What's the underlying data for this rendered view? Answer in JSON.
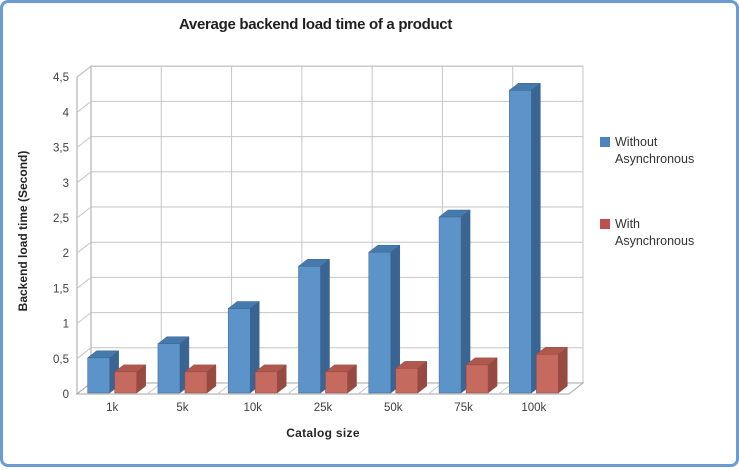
{
  "frame": {
    "border_color": "#6b9bd2",
    "background": "#ffffff"
  },
  "chart_data": {
    "type": "bar",
    "style": "3d-clustered-column",
    "title": "Average backend load time of a product",
    "xlabel": "Catalog size",
    "ylabel": "Backend load time (Second)",
    "categories": [
      "1k",
      "5k",
      "10k",
      "25k",
      "50k",
      "75k",
      "100k"
    ],
    "series": [
      {
        "name": "Without Asynchronous",
        "values": [
          0.5,
          0.7,
          1.2,
          1.8,
          2.0,
          2.5,
          4.3
        ],
        "color": "#4F81BD",
        "face_color": "#5C93C8",
        "side_color": "#3A6492",
        "top_color": "#4679AC"
      },
      {
        "name": "With Asynchronous",
        "values": [
          0.3,
          0.3,
          0.3,
          0.3,
          0.35,
          0.4,
          0.55
        ],
        "color": "#C0504D",
        "face_color": "#C6695F",
        "side_color": "#964A42",
        "top_color": "#B0584E"
      }
    ],
    "ylim": [
      0,
      4.5
    ],
    "y_tick_step": 0.5,
    "y_tick_labels": [
      "0",
      "0,5",
      "1",
      "1,5",
      "2",
      "2,5",
      "3",
      "3,5",
      "4",
      "4,5"
    ],
    "grid": true,
    "legend_position": "right",
    "colors": {
      "gridline": "#C6C6C6",
      "wall_edge": "#A6A6A6",
      "wall_fill": "#FFFFFF",
      "tick_label": "#3F3F3F"
    }
  }
}
